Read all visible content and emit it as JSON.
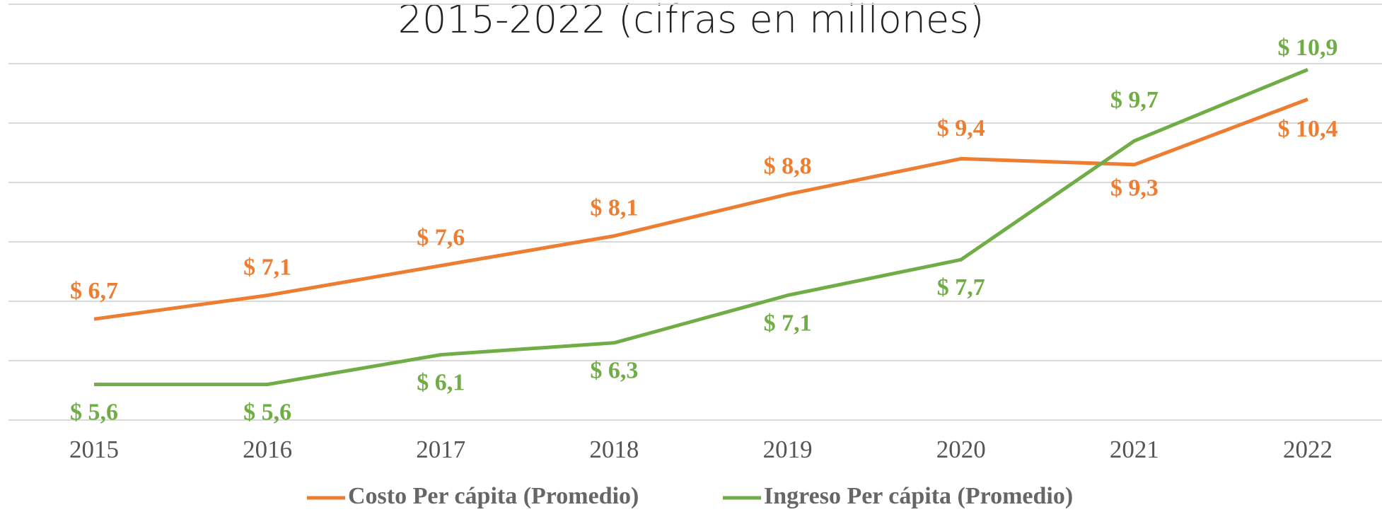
{
  "chart_data": {
    "type": "line",
    "title": "2015-2022 (cifras en millones)",
    "categories": [
      "2015",
      "2016",
      "2017",
      "2018",
      "2019",
      "2020",
      "2021",
      "2022"
    ],
    "series": [
      {
        "name": "Costo Per cápita (Promedio)",
        "color": "#ed7d31",
        "values": [
          6.7,
          7.1,
          7.6,
          8.1,
          8.8,
          9.4,
          9.3,
          10.4
        ],
        "value_labels": [
          "$ 6,7",
          "$ 7,1",
          "$ 7,6",
          "$ 8,1",
          "$ 8,8",
          "$ 9,4",
          "$ 9,3",
          "$ 10,4"
        ]
      },
      {
        "name": "Ingreso Per cápita (Promedio)",
        "color": "#70ad47",
        "values": [
          5.6,
          5.6,
          6.1,
          6.3,
          7.1,
          7.7,
          9.7,
          10.9
        ],
        "value_labels": [
          "$ 5,6",
          "$ 5,6",
          "$ 6,1",
          "$ 6,3",
          "$ 7,1",
          "$ 7,7",
          "$ 9,7",
          "$ 10,9"
        ]
      }
    ],
    "ylim": [
      5,
      12
    ],
    "yticks": [
      5,
      6,
      7,
      8,
      9,
      10,
      11,
      12
    ],
    "grid": true,
    "legend": "bottom"
  }
}
